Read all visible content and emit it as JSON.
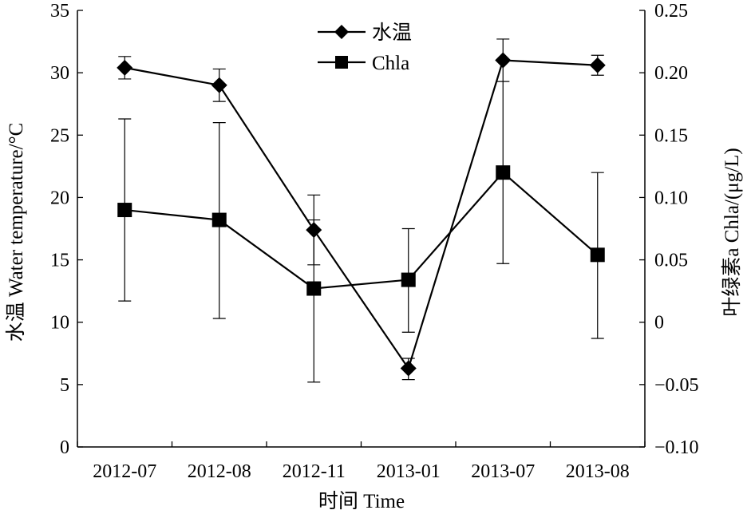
{
  "chart_data": {
    "type": "line",
    "categories": [
      "2012-07",
      "2012-08",
      "2012-11",
      "2013-01",
      "2013-07",
      "2013-08"
    ],
    "xlabel": "时间 Time",
    "ylabel_left": "水温 Water temperature/°C",
    "ylabel_right": "叶绿素a Chla/(μg/L)",
    "ylim_left": [
      0,
      35
    ],
    "yticks_left": [
      0,
      5,
      10,
      15,
      20,
      25,
      30,
      35
    ],
    "ylim_right": [
      -0.1,
      0.25
    ],
    "yticks_right": [
      "−0.10",
      "−0.05",
      "0",
      "0.05",
      "0.10",
      "0.15",
      "0.20",
      "0.25"
    ],
    "grid": false,
    "legend_position": "top-center",
    "series": [
      {
        "name": "水温",
        "axis": "left",
        "marker": "diamond",
        "values": [
          30.4,
          29.0,
          17.4,
          6.3,
          31.0,
          30.6
        ],
        "err_low": [
          29.5,
          27.7,
          14.6,
          5.4,
          29.3,
          29.8
        ],
        "err_high": [
          31.3,
          30.3,
          20.2,
          7.1,
          32.7,
          31.4
        ]
      },
      {
        "name": "Chla",
        "axis": "right",
        "marker": "square",
        "values": [
          0.09,
          0.082,
          0.027,
          0.034,
          0.12,
          0.054
        ],
        "err_low": [
          0.017,
          0.003,
          -0.048,
          -0.008,
          0.047,
          -0.013
        ],
        "err_high": [
          0.163,
          0.16,
          0.082,
          0.075,
          0.193,
          0.12
        ]
      }
    ]
  }
}
